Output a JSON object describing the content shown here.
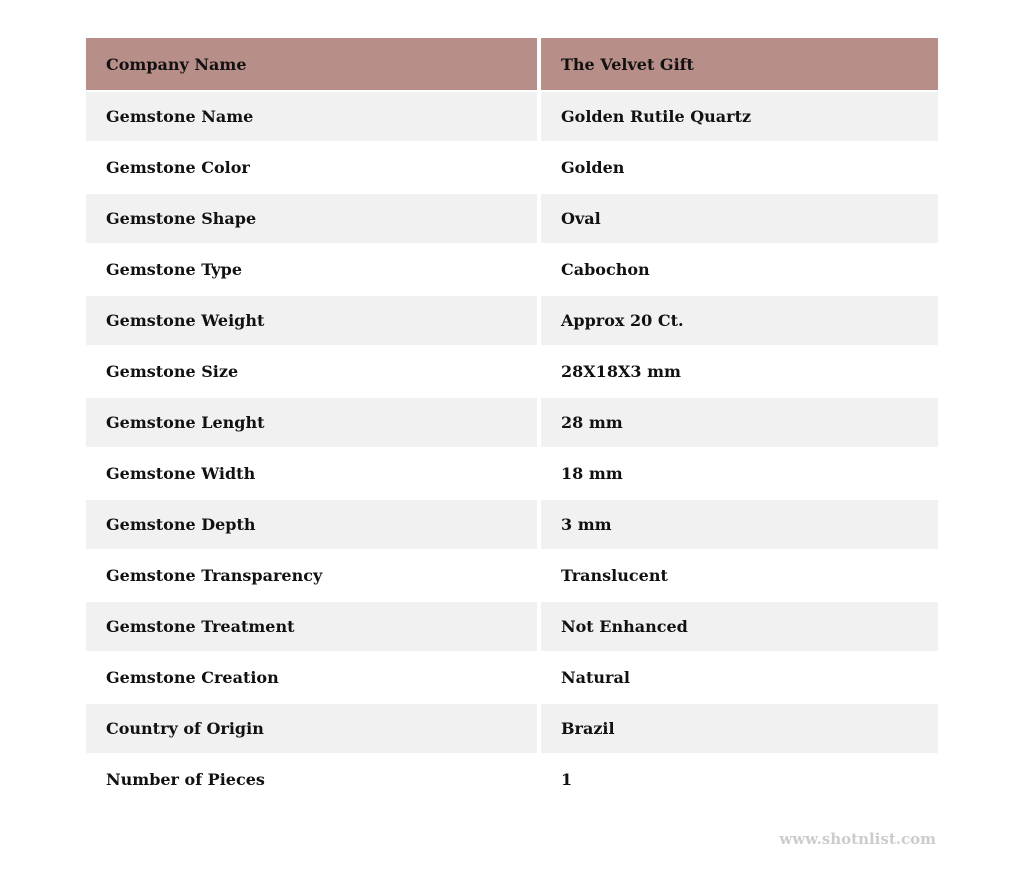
{
  "table": {
    "header": {
      "label": "Company Name",
      "value": "The Velvet Gift"
    },
    "rows": [
      {
        "label": "Gemstone Name",
        "value": "Golden Rutile Quartz"
      },
      {
        "label": "Gemstone Color",
        "value": "Golden"
      },
      {
        "label": "Gemstone Shape",
        "value": "Oval"
      },
      {
        "label": "Gemstone Type",
        "value": "Cabochon"
      },
      {
        "label": "Gemstone Weight",
        "value": "Approx 20 Ct."
      },
      {
        "label": "Gemstone Size",
        "value": "28X18X3 mm"
      },
      {
        "label": "Gemstone Lenght",
        "value": "28 mm"
      },
      {
        "label": "Gemstone Width",
        "value": "18 mm"
      },
      {
        "label": "Gemstone Depth",
        "value": "3 mm"
      },
      {
        "label": "Gemstone Transparency",
        "value": "Translucent"
      },
      {
        "label": "Gemstone Treatment",
        "value": "Not Enhanced"
      },
      {
        "label": "Gemstone Creation",
        "value": "Natural"
      },
      {
        "label": "Country of Origin",
        "value": "Brazil"
      },
      {
        "label": "Number of Pieces",
        "value": "1"
      }
    ]
  },
  "footer": {
    "watermark": "www.shotnlist.com"
  },
  "colors": {
    "header_bg": "#b88e88",
    "row_alt_bg": "#f1f1f1",
    "row_bg": "#ffffff",
    "text": "#111111",
    "watermark": "#cccccc"
  }
}
